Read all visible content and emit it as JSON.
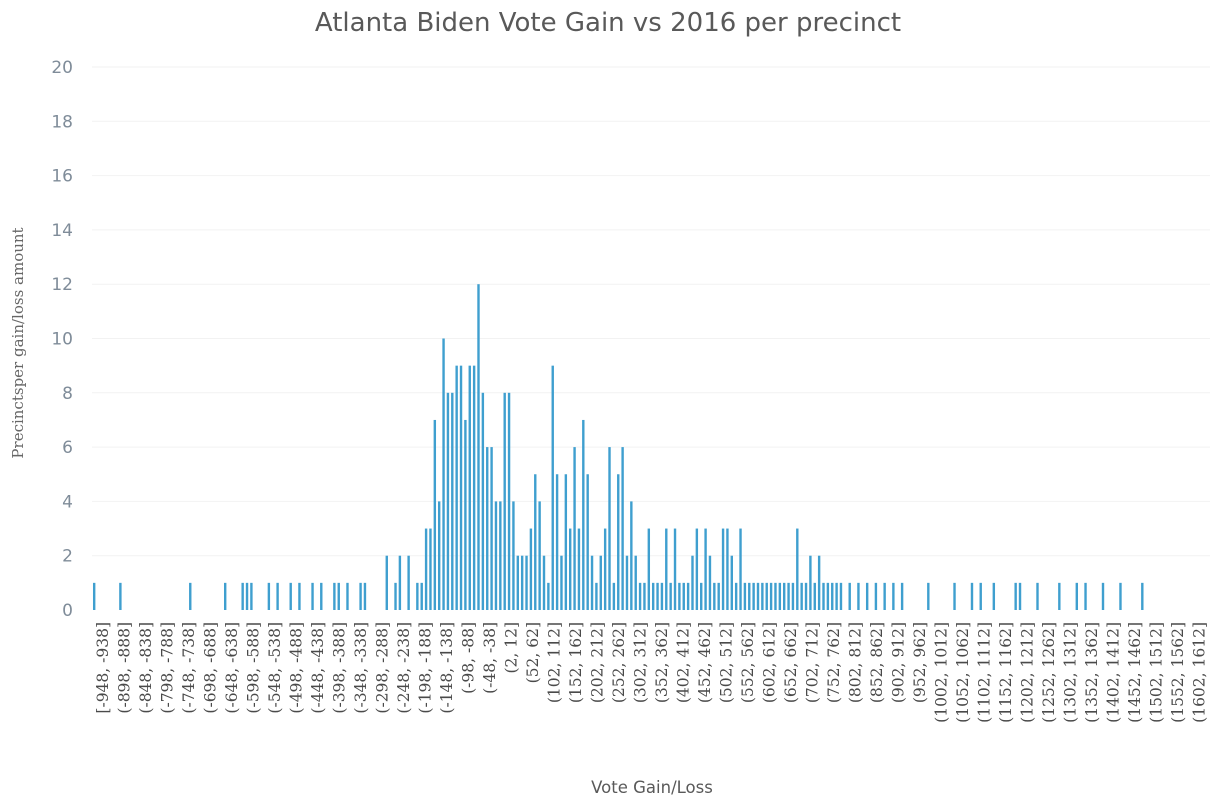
{
  "chart_data": {
    "type": "bar",
    "title": "Atlanta Biden Vote Gain vs 2016 per precinct",
    "xlabel": "Vote Gain/Loss",
    "ylabel": "Precinctsper gain/loss amount",
    "ylim": [
      0,
      20
    ],
    "yticks": [
      0,
      2,
      4,
      6,
      8,
      10,
      12,
      14,
      16,
      18,
      20
    ],
    "grid": true,
    "legend": "none",
    "bar_color": "#3f9fcf",
    "x_tick_labels": [
      "[-948, -938]",
      "(-898, -888]",
      "(-848, -838]",
      "(-798, -788]",
      "(-748, -738]",
      "(-698, -688]",
      "(-648, -638]",
      "(-598, -588]",
      "(-548, -538]",
      "(-498, -488]",
      "(-448, -438]",
      "(-398, -388]",
      "(-348, -338]",
      "(-298, -288]",
      "(-248, -238]",
      "(-198, -188]",
      "(-148, -138]",
      "(-98, -88]",
      "(-48, -38]",
      "(2, 12]",
      "(52, 62]",
      "(102, 112]",
      "(152, 162]",
      "(202, 212]",
      "(252, 262]",
      "(302, 312]",
      "(352, 362]",
      "(402, 412]",
      "(452, 462]",
      "(502, 512]",
      "(552, 562]",
      "(602, 612]",
      "(652, 662]",
      "(702, 712]",
      "(752, 762]",
      "(802, 812]",
      "(852, 862]",
      "(902, 912]",
      "(952, 962]",
      "(1002, 1012]",
      "(1052, 1062]",
      "(1102, 1112]",
      "(1152, 1162]",
      "(1202, 1212]",
      "(1252, 1262]",
      "(1302, 1312]",
      "(1352, 1362]",
      "(1402, 1412]",
      "(1452, 1462]",
      "(1502, 1512]",
      "(1552, 1562]",
      "(1602, 1612]"
    ],
    "x_range": [
      -948,
      1612
    ],
    "bin_width": 10,
    "bin_starts": [
      -948,
      -888,
      -728,
      -648,
      -608,
      -598,
      -588,
      -548,
      -528,
      -498,
      -478,
      -448,
      -428,
      -398,
      -388,
      -368,
      -338,
      -328,
      -278,
      -258,
      -248,
      -228,
      -208,
      -198,
      -188,
      -178,
      -168,
      -158,
      -148,
      -138,
      -128,
      -118,
      -108,
      -98,
      -88,
      -78,
      -68,
      -58,
      -48,
      -38,
      -28,
      -18,
      -8,
      2,
      12,
      22,
      32,
      42,
      52,
      62,
      72,
      82,
      92,
      102,
      112,
      122,
      132,
      142,
      152,
      162,
      172,
      182,
      192,
      202,
      212,
      222,
      232,
      242,
      252,
      262,
      272,
      282,
      292,
      302,
      312,
      322,
      332,
      342,
      352,
      362,
      372,
      382,
      392,
      402,
      412,
      422,
      432,
      442,
      452,
      462,
      472,
      482,
      492,
      502,
      512,
      522,
      532,
      542,
      552,
      562,
      572,
      582,
      592,
      602,
      612,
      622,
      632,
      642,
      652,
      662,
      672,
      682,
      692,
      702,
      712,
      722,
      732,
      742,
      752,
      762,
      782,
      802,
      822,
      842,
      862,
      882,
      902,
      962,
      1022,
      1062,
      1082,
      1112,
      1162,
      1172,
      1212,
      1262,
      1302,
      1322,
      1362,
      1402,
      1452
    ],
    "values": [
      1,
      1,
      1,
      1,
      1,
      1,
      1,
      1,
      1,
      1,
      1,
      1,
      1,
      1,
      1,
      1,
      1,
      1,
      2,
      1,
      2,
      2,
      1,
      1,
      3,
      3,
      7,
      4,
      10,
      8,
      8,
      9,
      9,
      7,
      9,
      9,
      12,
      8,
      6,
      6,
      4,
      4,
      8,
      8,
      4,
      2,
      2,
      2,
      3,
      5,
      4,
      2,
      1,
      9,
      5,
      2,
      5,
      3,
      6,
      3,
      7,
      5,
      2,
      1,
      2,
      3,
      6,
      1,
      5,
      6,
      2,
      4,
      2,
      1,
      1,
      3,
      1,
      1,
      1,
      3,
      1,
      3,
      1,
      1,
      1,
      2,
      3,
      1,
      3,
      2,
      1,
      1,
      3,
      3,
      2,
      1,
      3,
      1,
      1,
      1,
      1,
      1,
      1,
      1,
      1,
      1,
      1,
      1,
      1,
      3,
      1,
      1,
      2,
      1,
      2,
      1,
      1,
      1,
      1,
      1,
      1,
      1,
      1,
      1,
      1,
      1,
      1,
      1,
      1,
      1,
      1,
      1,
      1,
      1,
      1,
      1,
      1,
      1,
      1,
      1,
      1
    ]
  }
}
